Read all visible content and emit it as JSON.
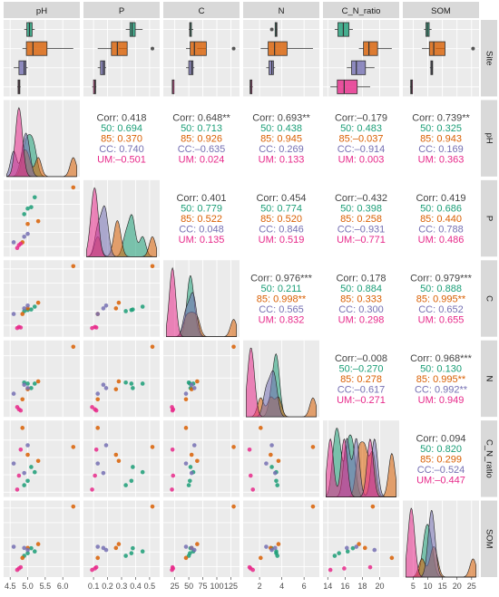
{
  "variables": [
    "pH",
    "P",
    "C",
    "N",
    "C_N_ratio",
    "SOM"
  ],
  "row_labels": [
    "Site",
    "pH",
    "P",
    "C",
    "N",
    "C_N_ratio",
    "SOM"
  ],
  "groups": [
    {
      "key": "50",
      "color": "#1b9e77"
    },
    {
      "key": "85",
      "color": "#d95f02"
    },
    {
      "key": "CC",
      "color": "#7570b3"
    },
    {
      "key": "UM",
      "color": "#e7298a"
    }
  ],
  "x_ticks": {
    "pH": [
      "4.5",
      "5.0",
      "5.5",
      "6.0"
    ],
    "P": [
      "0.1",
      "0.2",
      "0.3",
      "0.4",
      "0.5"
    ],
    "C": [
      "25",
      "50",
      "75",
      "100",
      "125"
    ],
    "N": [
      "2",
      "4",
      "6"
    ],
    "C_N_ratio": [
      "14",
      "16",
      "18",
      "20"
    ],
    "SOM": [
      "5",
      "10",
      "15",
      "20",
      "25"
    ]
  },
  "chart_data": {
    "type": "scatter",
    "corr_matrix": [
      {
        "row": "pH",
        "col": "P",
        "lines": [
          "Corr: 0.418",
          "50: 0.694",
          "85: 0.370",
          "CC: 0.740",
          "UM:–0.501"
        ]
      },
      {
        "row": "pH",
        "col": "C",
        "lines": [
          "Corr: 0.648**",
          "50: 0.713",
          "85: 0.926",
          "CC:–0.635",
          "UM: 0.024"
        ]
      },
      {
        "row": "pH",
        "col": "N",
        "lines": [
          "Corr: 0.693**",
          "50: 0.438",
          "85: 0.945",
          "CC: 0.269",
          "UM: 0.133"
        ]
      },
      {
        "row": "pH",
        "col": "C_N_ratio",
        "lines": [
          "Corr:–0.179",
          "50: 0.483",
          "85:–0.037",
          "CC:–0.914",
          "UM: 0.003"
        ]
      },
      {
        "row": "pH",
        "col": "SOM",
        "lines": [
          "Corr: 0.739**",
          "50: 0.325",
          "85: 0.943",
          "CC: 0.169",
          "UM: 0.363"
        ]
      },
      {
        "row": "P",
        "col": "C",
        "lines": [
          "Corr: 0.401",
          "50: 0.779",
          "85: 0.522",
          "CC: 0.048",
          "UM: 0.135"
        ]
      },
      {
        "row": "P",
        "col": "N",
        "lines": [
          "Corr: 0.454",
          "50: 0.774",
          "85: 0.520",
          "CC: 0.846",
          "UM: 0.519"
        ]
      },
      {
        "row": "P",
        "col": "C_N_ratio",
        "lines": [
          "Corr:–0.432",
          "50: 0.398",
          "85: 0.258",
          "CC:–0.931",
          "UM:–0.771"
        ]
      },
      {
        "row": "P",
        "col": "SOM",
        "lines": [
          "Corr: 0.419",
          "50: 0.686",
          "85: 0.440",
          "CC: 0.788",
          "UM: 0.486"
        ]
      },
      {
        "row": "C",
        "col": "N",
        "lines": [
          "Corr: 0.976***",
          "50: 0.211",
          "85: 0.998**",
          "CC: 0.565",
          "UM: 0.832"
        ]
      },
      {
        "row": "C",
        "col": "C_N_ratio",
        "lines": [
          "Corr: 0.178",
          "50: 0.884",
          "85: 0.333",
          "CC: 0.300",
          "UM: 0.298"
        ]
      },
      {
        "row": "C",
        "col": "SOM",
        "lines": [
          "Corr: 0.979***",
          "50: 0.888",
          "85: 0.995**",
          "CC: 0.652",
          "UM: 0.655"
        ]
      },
      {
        "row": "N",
        "col": "C_N_ratio",
        "lines": [
          "Corr:–0.008",
          "50:–0.270",
          "85: 0.278",
          "CC:–0.617",
          "UM:–0.271"
        ]
      },
      {
        "row": "N",
        "col": "SOM",
        "lines": [
          "Corr: 0.968***",
          "50: 0.130",
          "85: 0.995**",
          "CC: 0.992**",
          "UM: 0.949"
        ]
      },
      {
        "row": "C_N_ratio",
        "col": "SOM",
        "lines": [
          "Corr: 0.094",
          "50: 0.820",
          "85: 0.299",
          "CC:–0.524",
          "UM:–0.447"
        ]
      }
    ],
    "observations": [
      {
        "site": "50",
        "pH": 4.9,
        "P": 0.33,
        "C": 50,
        "N": 3.6,
        "C_N_ratio": 14.8,
        "SOM": 8.7
      },
      {
        "site": "50",
        "pH": 5.0,
        "P": 0.37,
        "C": 52,
        "N": 3.5,
        "C_N_ratio": 15.3,
        "SOM": 9.6
      },
      {
        "site": "50",
        "pH": 5.2,
        "P": 0.45,
        "C": 58,
        "N": 3.5,
        "C_N_ratio": 16.3,
        "SOM": 10.2
      },
      {
        "site": "50",
        "pH": 5.1,
        "P": 0.38,
        "C": 53,
        "N": 3.1,
        "C_N_ratio": 16.9,
        "SOM": 11.3
      },
      {
        "site": "85",
        "pH": 6.3,
        "P": 0.52,
        "C": 130,
        "N": 6.8,
        "C_N_ratio": 19.2,
        "SOM": 25.5
      },
      {
        "site": "85",
        "pH": 5.3,
        "P": 0.28,
        "C": 65,
        "N": 3.7,
        "C_N_ratio": 17.6,
        "SOM": 12.7
      },
      {
        "site": "85",
        "pH": 5.0,
        "P": 0.26,
        "C": 55,
        "N": 3.0,
        "C_N_ratio": 18.3,
        "SOM": 11.4
      },
      {
        "site": "85",
        "pH": 4.85,
        "P": 0.13,
        "C": 45,
        "N": 2.1,
        "C_N_ratio": 21.4,
        "SOM": 8.0
      },
      {
        "site": "CC",
        "pH": 4.6,
        "P": 0.13,
        "C": 45,
        "N": 2.6,
        "C_N_ratio": 17.3,
        "SOM": 11.8
      },
      {
        "site": "CC",
        "pH": 4.9,
        "P": 0.17,
        "C": 55,
        "N": 3.4,
        "C_N_ratio": 16.2,
        "SOM": 11.4
      },
      {
        "site": "CC",
        "pH": 5.0,
        "P": 0.19,
        "C": 60,
        "N": 3.1,
        "C_N_ratio": 19.4,
        "SOM": 10.7
      },
      {
        "site": "UM",
        "pH": 4.7,
        "P": 0.09,
        "C": 20,
        "N": 1.4,
        "C_N_ratio": 14.3,
        "SOM": 3.9
      },
      {
        "site": "UM",
        "pH": 4.75,
        "P": 0.11,
        "C": 22,
        "N": 1.2,
        "C_N_ratio": 15.9,
        "SOM": 4.4
      },
      {
        "site": "UM",
        "pH": 4.8,
        "P": 0.12,
        "C": 21,
        "N": 1.1,
        "C_N_ratio": 18.9,
        "SOM": 4.8
      }
    ]
  }
}
